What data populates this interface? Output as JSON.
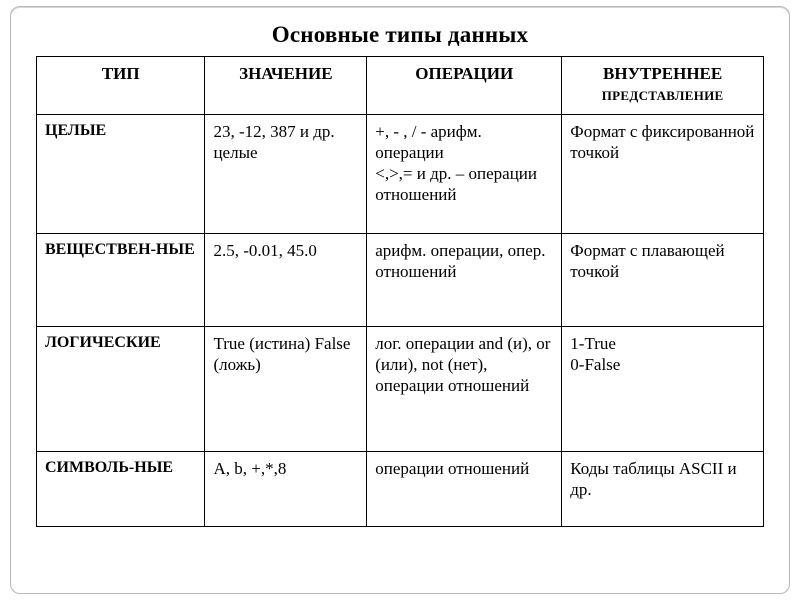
{
  "title": "Основные типы данных",
  "columns": {
    "c0": "ТИП",
    "c1": "ЗНАЧЕНИЕ",
    "c2": "ОПЕРАЦИИ",
    "c3_main": "ВНУТРЕННЕЕ",
    "c3_sub": "ПРЕДСТАВЛЕНИЕ"
  },
  "rows": [
    {
      "type": "ЦЕЛЫЕ",
      "value": "23, -12, 387 и др. целые",
      "ops": "+, - , / - арифм. операции\n<,>,= и др. – операции отношений",
      "repr": "Формат с фиксированной точкой"
    },
    {
      "type": "ВЕЩЕСТВЕН-НЫЕ",
      "value": "2.5, -0.01, 45.0",
      "ops": "арифм. операции, опер. отношений",
      "repr": "Формат с плавающей  точкой"
    },
    {
      "type": "ЛОГИЧЕСКИЕ",
      "value": "True (истина) False (ложь)",
      "ops": "лог. операции and (и), or (или), not (нет), операции отношений",
      "repr": "1-True\n0-False"
    },
    {
      "type": "СИМВОЛЬ-НЫЕ",
      "value": "A, b, +,*,8",
      "ops": "операции отношений",
      "repr": "Коды таблицы ASCII и др."
    }
  ],
  "colors": {
    "text": "#000000",
    "border": "#000000",
    "frame": "#b9b8b4",
    "background": "#ffffff"
  }
}
